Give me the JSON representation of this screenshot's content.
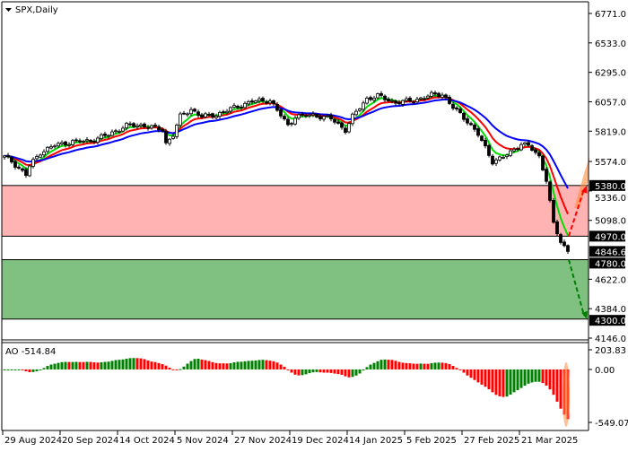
{
  "header": {
    "symbol_title": "SPX,Daily"
  },
  "colors": {
    "zone_resistance": "#ffb3b3",
    "zone_support": "#80c080",
    "ma_fast": "#00e000",
    "ma_mid": "#ff0000",
    "ma_slow": "#0000ff",
    "ao_up": "#008000",
    "ao_down": "#ff0000",
    "highlight": "#ff8c40"
  },
  "chart_data": [
    {
      "type": "candlestick",
      "title": "SPX,Daily",
      "y_ticks": [
        "6771.0",
        "6533.0",
        "6295.0",
        "6057.0",
        "5819.0",
        "5574.0",
        "5336.0",
        "5098.0",
        "4622.0",
        "4384.0",
        "4146.0"
      ],
      "ylim": [
        4146,
        6771
      ],
      "price_labels": [
        {
          "label": "5380.0",
          "value": 5380
        },
        {
          "label": "4970.0",
          "value": 4970
        },
        {
          "label": "4846.6",
          "value": 4846.6
        },
        {
          "label": "4780.0",
          "value": 4780
        },
        {
          "label": "4300.0",
          "value": 4300
        }
      ],
      "zones": [
        {
          "name": "resistance",
          "from": 4970,
          "to": 5380
        },
        {
          "name": "support",
          "from": 4300,
          "to": 4780
        }
      ],
      "scenarios": [
        {
          "name": "rebound",
          "from": 4970,
          "to": 5380,
          "color": "#ff0000"
        },
        {
          "name": "decline",
          "from": 4780,
          "to": 4300,
          "color": "#008000"
        }
      ],
      "bars": 158,
      "close_path": [
        [
          0,
          5611
        ],
        [
          2,
          5575
        ],
        [
          6,
          5466
        ],
        [
          7,
          5538
        ],
        [
          10,
          5647
        ],
        [
          14,
          5705
        ],
        [
          19,
          5734
        ],
        [
          24,
          5741
        ],
        [
          29,
          5792
        ],
        [
          34,
          5865
        ],
        [
          39,
          5865
        ],
        [
          44,
          5829
        ],
        [
          45,
          5720
        ],
        [
          47,
          5792
        ],
        [
          49,
          5937
        ],
        [
          52,
          5995
        ],
        [
          55,
          5937
        ],
        [
          59,
          5952
        ],
        [
          64,
          6010
        ],
        [
          69,
          6060
        ],
        [
          74,
          6068
        ],
        [
          79,
          5865
        ],
        [
          81,
          5937
        ],
        [
          86,
          5950
        ],
        [
          91,
          5920
        ],
        [
          95,
          5829
        ],
        [
          97,
          5937
        ],
        [
          101,
          6082
        ],
        [
          104,
          6104
        ],
        [
          109,
          6050
        ],
        [
          114,
          6068
        ],
        [
          119,
          6111
        ],
        [
          122,
          6118
        ],
        [
          125,
          6010
        ],
        [
          129,
          5901
        ],
        [
          132,
          5792
        ],
        [
          136,
          5575
        ],
        [
          139,
          5610
        ],
        [
          141,
          5647
        ],
        [
          144,
          5720
        ],
        [
          146,
          5700
        ],
        [
          149,
          5611
        ],
        [
          151,
          5430
        ],
        [
          153,
          5067
        ],
        [
          155,
          4922
        ],
        [
          157,
          4846.6
        ]
      ],
      "moving_averages": [
        {
          "color": "#00e000",
          "period": 5
        },
        {
          "color": "#ff0000",
          "period": 10
        },
        {
          "color": "#0000ff",
          "period": 20
        }
      ],
      "x_labels": [
        "29 Aug 2024",
        "20 Sep 2024",
        "14 Oct 2024",
        "5 Nov 2024",
        "27 Nov 2024",
        "19 Dec 2024",
        "14 Jan 2025",
        "5 Feb 2025",
        "27 Feb 2025",
        "21 Mar 2025"
      ]
    },
    {
      "type": "bar",
      "title": "AO -514.84",
      "indicator": "AO",
      "last_value": "-514.84",
      "y_ticks": [
        "203.83",
        "0.00",
        "-549.07"
      ],
      "ylim": [
        -549.07,
        203.83
      ]
    }
  ]
}
